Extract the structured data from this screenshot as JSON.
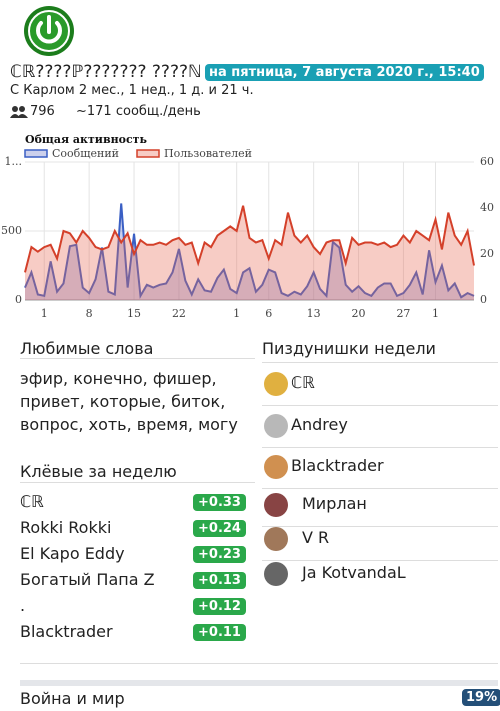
{
  "header": {
    "title": "ℂℝ????ℙ??????? ????ℕ",
    "date": "на пятница, 7 августа 2020 г., 15:40",
    "age": "С Карлом 2 мес., 1 нед., 1 д. и 21 ч.",
    "members": "796",
    "rate": "~171 сообщ./день"
  },
  "chart_data": {
    "type": "line",
    "title": "Общая активность",
    "categories": [
      null,
      null,
      null,
      "1",
      null,
      null,
      null,
      null,
      null,
      null,
      "8",
      null,
      null,
      null,
      null,
      null,
      null,
      "15",
      null,
      null,
      null,
      null,
      null,
      null,
      "22",
      null,
      null,
      null,
      null,
      null,
      null,
      null,
      null,
      "1",
      null,
      null,
      null,
      null,
      "6",
      null,
      null,
      null,
      null,
      null,
      null,
      "13",
      null,
      null,
      null,
      null,
      null,
      null,
      "20",
      null,
      null,
      null,
      null,
      null,
      null,
      "27",
      null,
      null,
      null,
      null,
      "1",
      null,
      null,
      null,
      null,
      null,
      null
    ],
    "series": [
      {
        "name": "Сообщений",
        "color": "#3a5fc4",
        "fill": "rgba(110,120,200,0.35)",
        "values": [
          90,
          200,
          40,
          30,
          280,
          60,
          120,
          390,
          400,
          90,
          50,
          150,
          380,
          60,
          40,
          700,
          90,
          480,
          30,
          110,
          90,
          110,
          120,
          200,
          370,
          140,
          40,
          150,
          70,
          60,
          160,
          220,
          80,
          50,
          200,
          230,
          60,
          110,
          220,
          200,
          50,
          30,
          60,
          40,
          100,
          200,
          80,
          30,
          420,
          380,
          110,
          60,
          100,
          50,
          30,
          90,
          120,
          120,
          30,
          50,
          110,
          200,
          40,
          360,
          130,
          250,
          70,
          120,
          20,
          50,
          30
        ]
      },
      {
        "name": "Пользователей",
        "color": "#d4402a",
        "fill": "rgba(232,110,90,0.35)",
        "axis": "y2",
        "values": [
          12,
          23,
          21,
          23,
          24,
          18,
          30,
          29,
          25,
          30,
          27,
          23,
          22,
          23,
          30,
          25,
          29,
          20,
          26,
          24,
          24,
          25,
          24,
          26,
          27,
          24,
          25,
          16,
          25,
          23,
          28,
          30,
          32,
          30,
          41,
          27,
          25,
          26,
          18,
          26,
          24,
          38,
          28,
          25,
          28,
          23,
          20,
          25,
          26,
          26,
          16,
          27,
          24,
          25,
          25,
          24,
          25,
          23,
          24,
          28,
          25,
          30,
          28,
          26,
          35,
          22,
          38,
          28,
          24,
          30,
          15
        ]
      }
    ],
    "ylim": [
      0,
      1000
    ],
    "yticks": [
      0,
      500,
      {
        "value": 1000,
        "label": "1..."
      }
    ],
    "y2lim": [
      0,
      60
    ],
    "y2ticks": [
      0,
      20,
      40,
      60
    ],
    "grid": true
  },
  "favorite_words": {
    "title": "Любимые слова",
    "text": "эфир, конечно, фишер, привет, которые, биток, вопрос, хоть, время, могу"
  },
  "cool": {
    "title": "Клёвые за неделю",
    "items": [
      {
        "name": "ℂℝ",
        "score": "+0.33"
      },
      {
        "name": "Rokki Rokki",
        "score": "+0.24"
      },
      {
        "name": "El Kapo Eddy",
        "score": "+0.23"
      },
      {
        "name": "Богатый Папа Z",
        "score": "+0.13"
      },
      {
        "name": ".",
        "score": "+0.12"
      },
      {
        "name": "Blacktrader",
        "score": "+0.11"
      }
    ]
  },
  "weekly": {
    "title": "Пиздунишки недели",
    "items": [
      "ℂℝ",
      "Andrey",
      "Blacktrader",
      "Мирлан",
      "V R",
      "Ja KotvandaL"
    ]
  },
  "book": {
    "title": "Война и мир",
    "percent": "19%"
  }
}
